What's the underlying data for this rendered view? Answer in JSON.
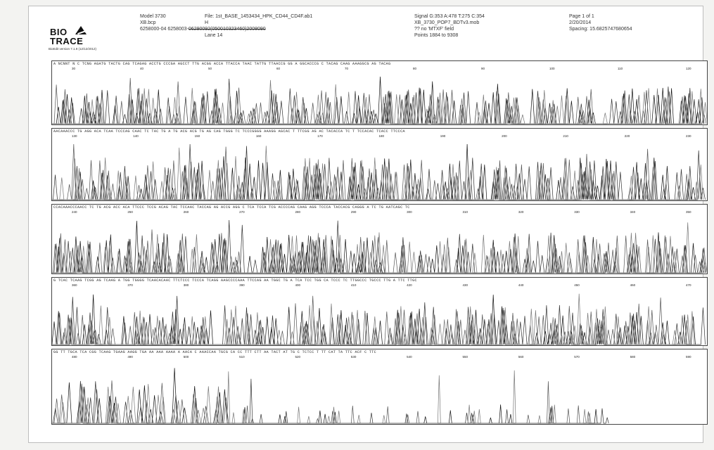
{
  "header": {
    "logo_top": "BIO",
    "logo_bottom": "TRACE",
    "bioedit_version": "BioEdit version 7.1.9 (12/12/2012)",
    "col1": [
      "Model 3730",
      "XB.bcp",
      "6258000-04 6258003-"
    ],
    "col1_redacted": "06290092(050010323460)2008090",
    "col2": [
      "File: 1st_BASE_1453434_HPK_CD44_CD4F.ab1",
      "H",
      "",
      "Lane 14"
    ],
    "col3": [
      "Signal G:353 A:478 T:275 C:354",
      "XB_3730_POP7_BDTv3.mob",
      "?? no 'MTXF' field",
      "Points 1884 to 9308"
    ],
    "col4": [
      "Page 1 of 1",
      "2/20/2014",
      "Spacing: 15.6825747680654"
    ]
  },
  "rows": [
    {
      "sequence": "A  NCNNT  N  C TCNG  AGATG TACTG CAG TCAGAG  ACCTG  CCCGA AGCCT TTG ACGG ACCA TTACCA TAAC TATTG TTAACCG GG A GGCACCCG C TACAG CAAG AAAGGCG AG TACAG",
      "ticks": [
        "30",
        "40",
        "50",
        "60",
        "70",
        "80",
        "90",
        "100",
        "110",
        "120"
      ]
    },
    {
      "sequence": "AACAAACCC TG  AGG ACA TCAA TCCCAG CAAC TC TAC TG A TG ACG ACG TG AG CAG TGGG TC TCCCGGGG AAAGG AGCAC T TTCGG AG AC TACACCA TC T TCCACAC TCACC TTCCCA",
      "ticks": [
        "130",
        "140",
        "150",
        "160",
        "170",
        "180",
        "190",
        "200",
        "210",
        "220",
        "230"
      ]
    },
    {
      "sequence": "CCACAAACCCAACC TC TG ACG ACC ACA TTCCC TCCG ACAG  TAC TCCAAC TACCAG AG ACCG AGG C TCA TCCA TCG ACCCCAG CAAG AGG TCCCA TACCACG CAGGG A TC TG AATCAGC TC",
      "ticks": [
        "240",
        "250",
        "260",
        "270",
        "280",
        "290",
        "300",
        "310",
        "320",
        "330",
        "340",
        "350"
      ]
    },
    {
      "sequence": "G TCAC TCAAG TCGG AG TCAAG A TGG TGGGG TCAACACAAC TTCTCCC TCCCA TCAGG AAGCCCCAAA TTCCAG AA TGGC TG A TCA TCC TGG CA TCCC TC TTGGCCC TGCCC TTG A TTC TTGC",
      "ticks": [
        "360",
        "370",
        "380",
        "390",
        "400",
        "410",
        "420",
        "430",
        "440",
        "450",
        "460",
        "470"
      ]
    },
    {
      "sequence": "GG TT TGCA TCA CGG TCAAG TGAAG AAGG TGA AA  AAA AAAA A  AACA C AAACCAA TGCG  CA  CC  TTT CTT AA TACT  AT  TG C TCTCC T  TT CAT TA TTC ACF  C TTC",
      "ticks": [
        "480",
        "490",
        "500",
        "510",
        "520",
        "530",
        "540",
        "550",
        "560",
        "570",
        "580",
        "590"
      ]
    }
  ]
}
